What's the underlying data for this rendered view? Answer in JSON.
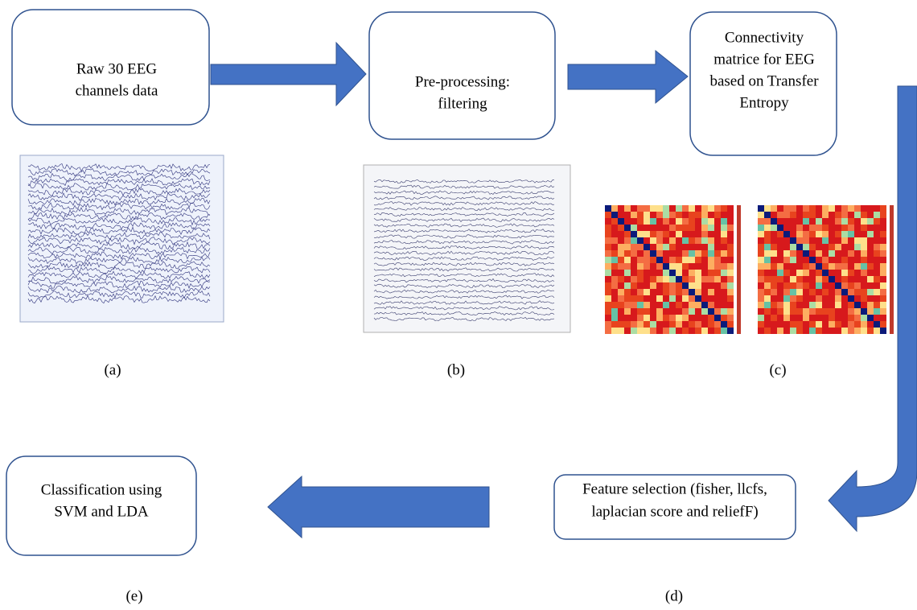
{
  "nodes": [
    {
      "lines": [
        "Raw 30 EEG",
        "channels data"
      ]
    },
    {
      "lines": [
        "Pre-processing:",
        "filtering"
      ]
    },
    {
      "lines": [
        "Connectivity",
        "matrice for EEG",
        "based on Transfer",
        "Entropy"
      ]
    },
    {
      "lines": [
        "Feature selection (fisher, llcfs,",
        "laplacian score and reliefF)"
      ]
    },
    {
      "lines": [
        "Classification using",
        "SVM and LDA"
      ]
    }
  ],
  "captions": [
    "(a)",
    "(b)",
    "(c)",
    "(d)",
    "(e)"
  ]
}
